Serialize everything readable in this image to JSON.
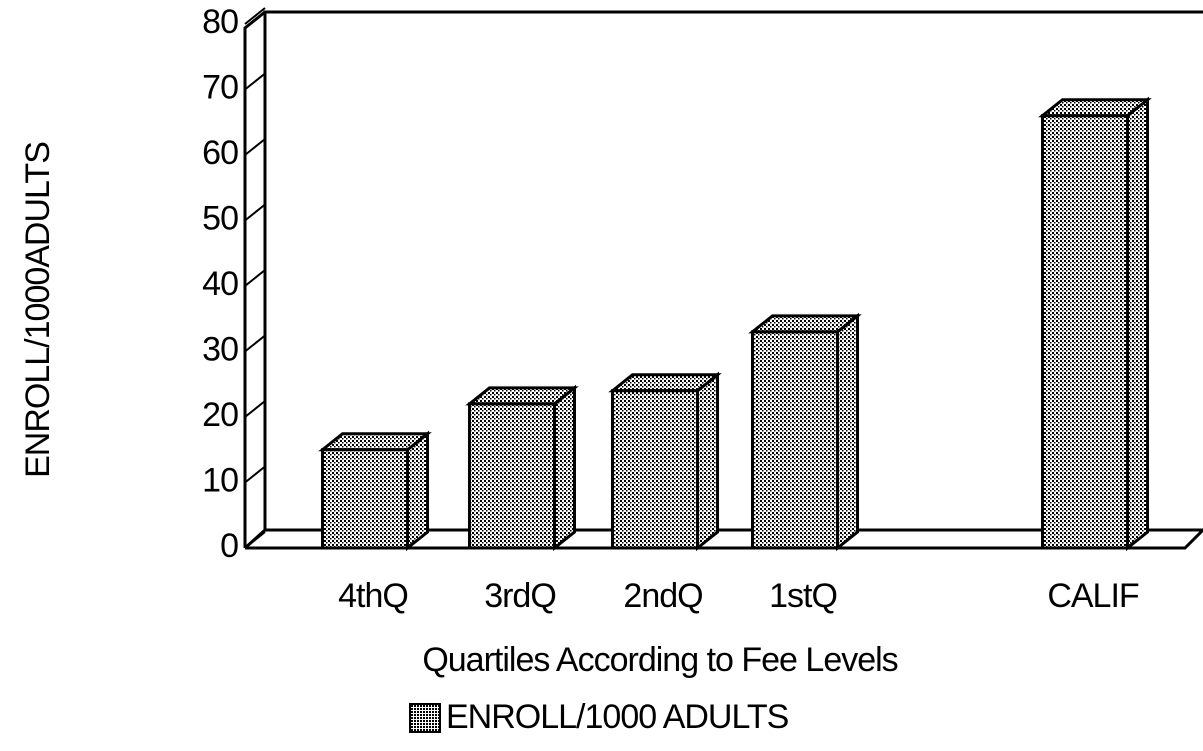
{
  "chart_data": {
    "type": "bar3d",
    "y_label": "ENROLL/1000ADULTS",
    "x_label": "Quartiles According to Fee Levels",
    "categories": [
      "4thQ",
      "3rdQ",
      "2ndQ",
      "1stQ",
      "CALIF"
    ],
    "series": [
      {
        "name": "ENROLL/1000 ADULTS",
        "color": "#000000",
        "values": [
          15,
          22,
          24,
          33,
          66
        ]
      }
    ],
    "ylim": [
      0,
      80
    ],
    "yticks": [
      0,
      10,
      20,
      30,
      40,
      50,
      60,
      70,
      80
    ]
  }
}
